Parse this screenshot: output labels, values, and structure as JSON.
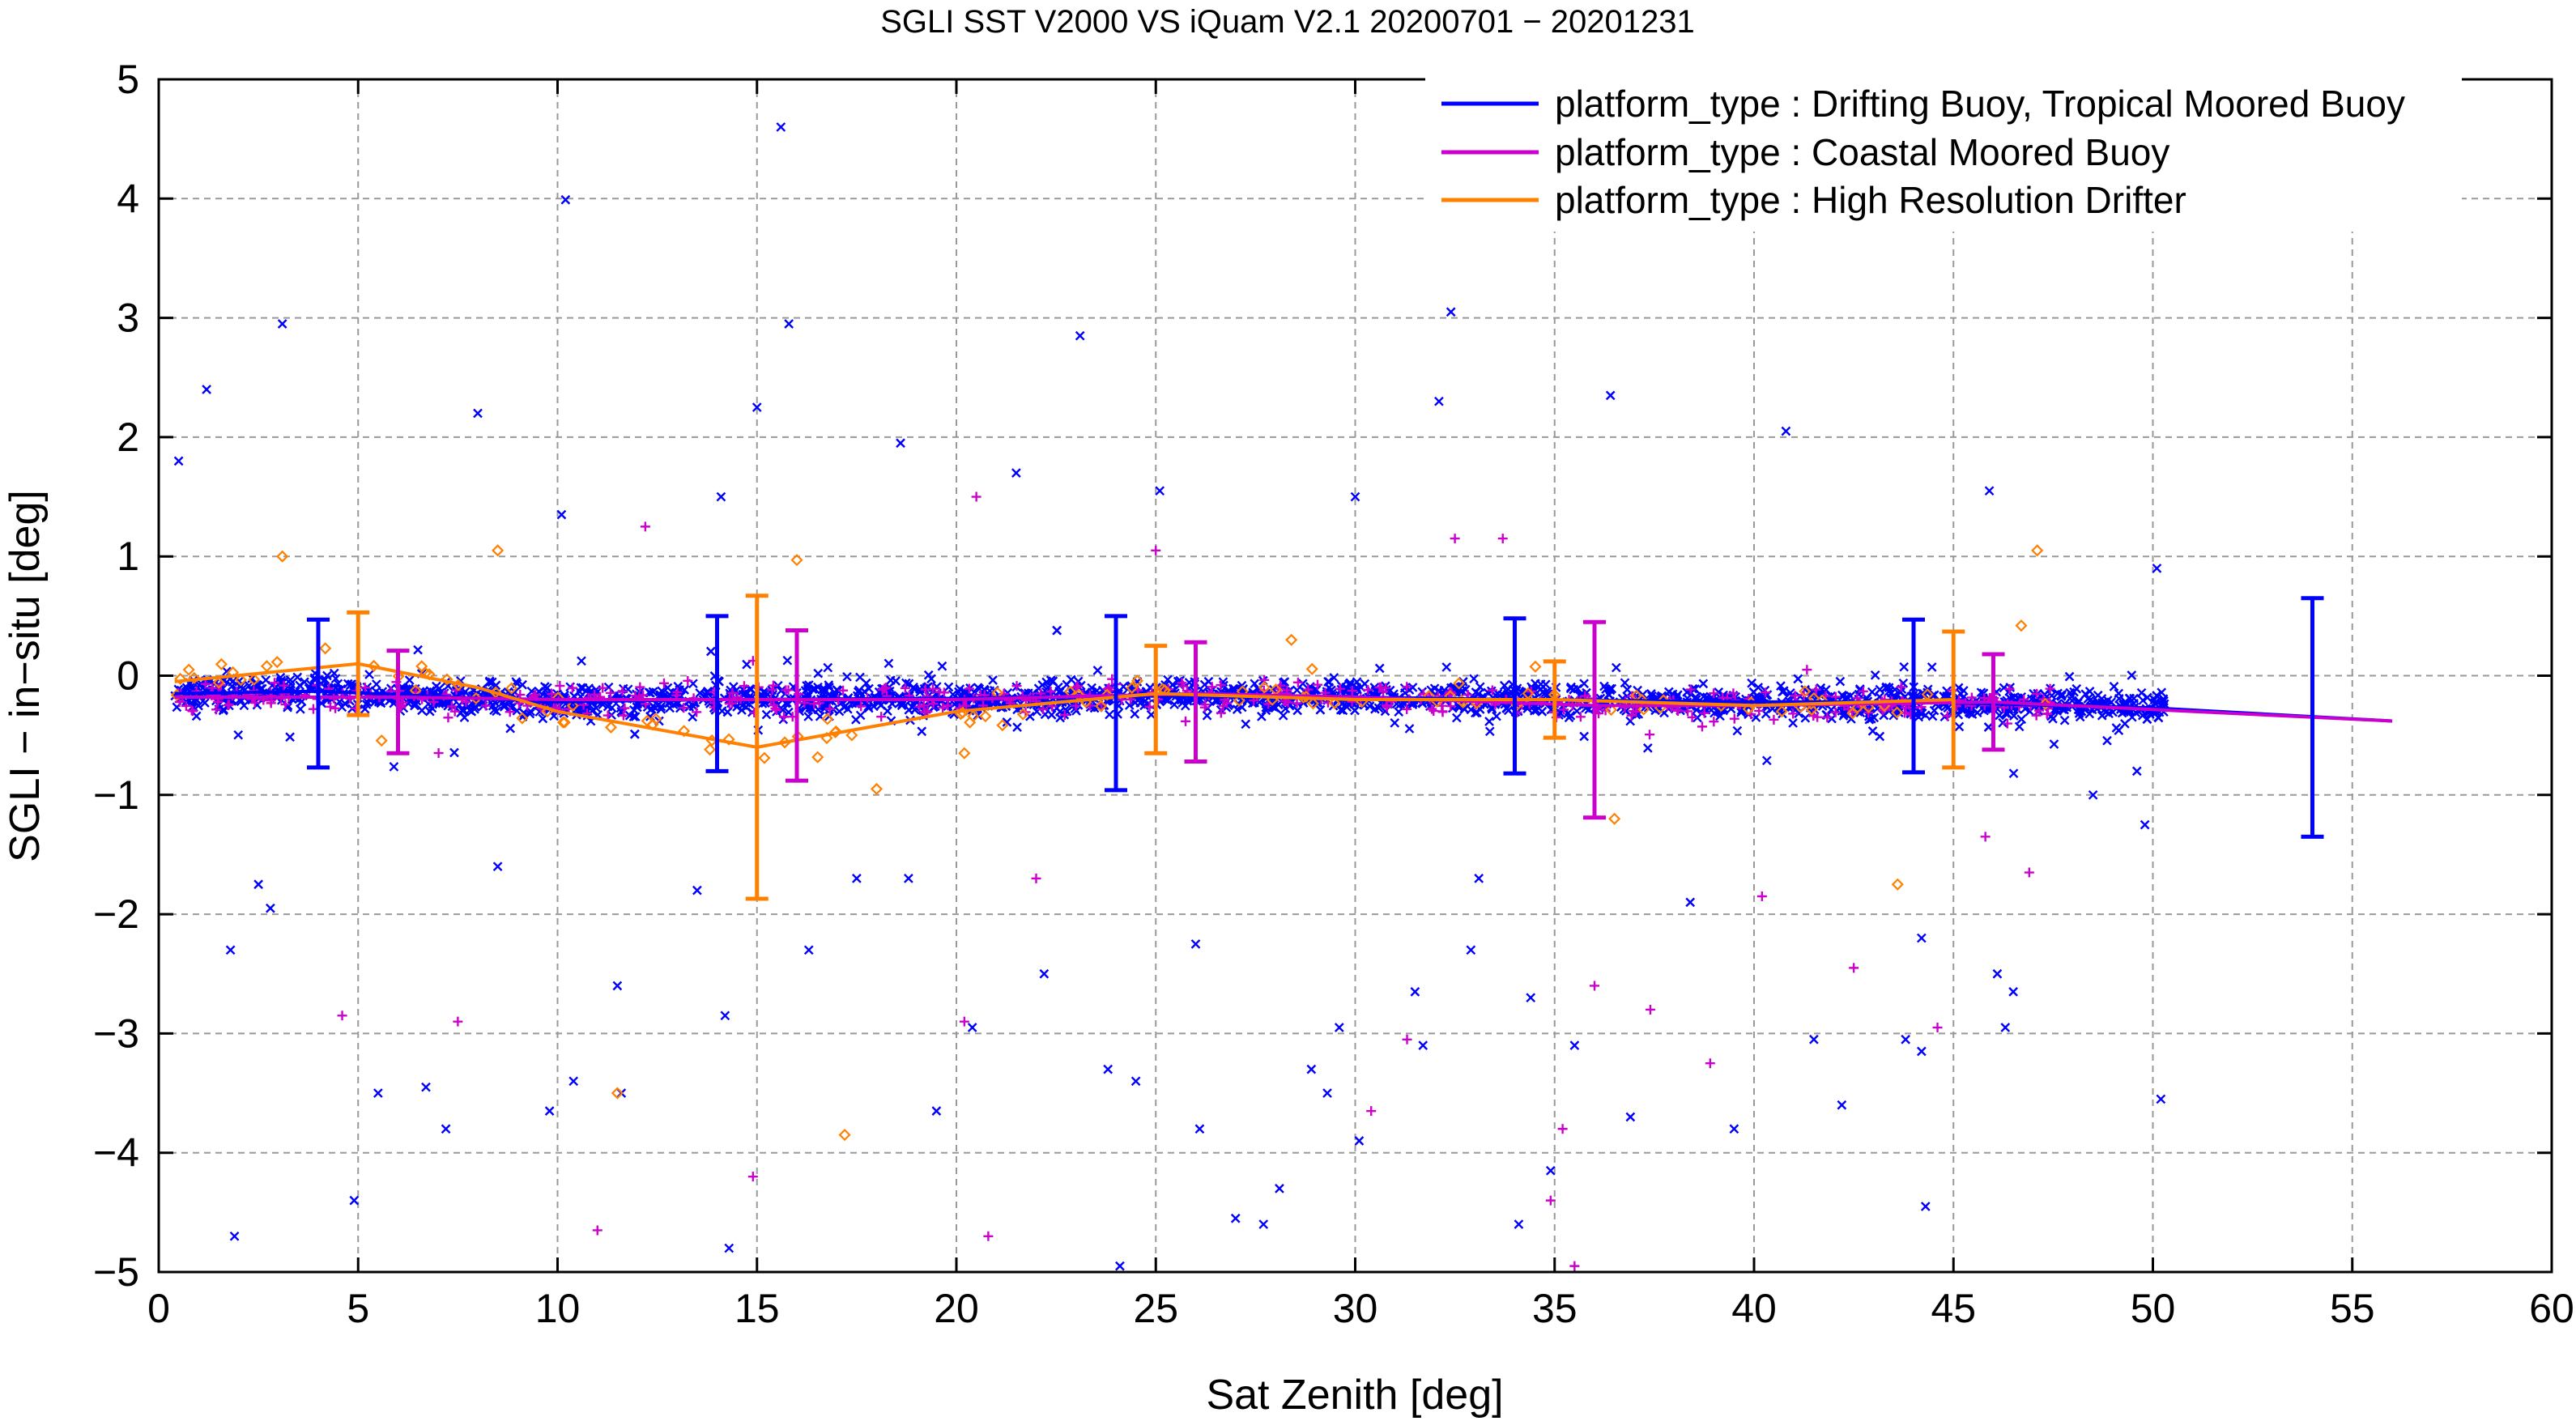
{
  "chart_data": {
    "type": "scatter",
    "title": "SGLI SST V2000 VS iQuam V2.1 20200701 − 20201231",
    "xlabel": "Sat Zenith [deg]",
    "ylabel": "SGLI − in−situ [deg]",
    "xlim": [
      0,
      60
    ],
    "ylim": [
      -5,
      5
    ],
    "xticks": [
      "0",
      "5",
      "10",
      "15",
      "20",
      "25",
      "30",
      "35",
      "40",
      "45",
      "50",
      "55",
      "60"
    ],
    "yticks": [
      "−5",
      "−4",
      "−3",
      "−2",
      "−1",
      "0",
      "1",
      "2",
      "3",
      "4",
      "5"
    ],
    "grid": true,
    "legend_position": "top-right",
    "series": [
      {
        "name": "platform_type : Drifting Buoy, Tropical Moored Buoy",
        "color": "#0000ff",
        "marker": "x",
        "mean_line": [
          [
            0.4,
            -0.15
          ],
          [
            4,
            -0.13
          ],
          [
            10,
            -0.22
          ],
          [
            14,
            -0.2
          ],
          [
            20,
            -0.19
          ],
          [
            24,
            -0.17
          ],
          [
            30,
            -0.18
          ],
          [
            34,
            -0.2
          ],
          [
            40,
            -0.22
          ],
          [
            44,
            -0.22
          ],
          [
            50,
            -0.27
          ],
          [
            56,
            -0.38
          ]
        ],
        "error_bars": [
          [
            4,
            -0.15,
            0.62
          ],
          [
            14,
            -0.15,
            0.65
          ],
          [
            24,
            -0.23,
            0.73
          ],
          [
            34,
            -0.17,
            0.65
          ],
          [
            44,
            -0.17,
            0.64
          ],
          [
            54,
            -0.35,
            1.0
          ]
        ],
        "outliers": [
          [
            0.5,
            1.8
          ],
          [
            1.2,
            2.4
          ],
          [
            3.1,
            2.95
          ],
          [
            1.8,
            -2.3
          ],
          [
            1.9,
            -4.7
          ],
          [
            2.5,
            -1.75
          ],
          [
            2.8,
            -1.95
          ],
          [
            4.9,
            -4.4
          ],
          [
            5.5,
            -3.5
          ],
          [
            6.7,
            -3.45
          ],
          [
            7.2,
            -3.8
          ],
          [
            8,
            2.2
          ],
          [
            8.5,
            -1.6
          ],
          [
            10.1,
            1.35
          ],
          [
            10.2,
            3.99
          ],
          [
            10.4,
            -3.4
          ],
          [
            9.8,
            -3.65
          ],
          [
            11.5,
            -2.6
          ],
          [
            11.6,
            -3.5
          ],
          [
            13.5,
            -1.8
          ],
          [
            14.1,
            1.5
          ],
          [
            14.2,
            -2.85
          ],
          [
            14.3,
            -4.8
          ],
          [
            15,
            2.25
          ],
          [
            15.6,
            4.6
          ],
          [
            15.8,
            2.95
          ],
          [
            16.3,
            -2.3
          ],
          [
            17.5,
            -1.7
          ],
          [
            18.6,
            1.95
          ],
          [
            18.8,
            -1.7
          ],
          [
            19.5,
            -3.65
          ],
          [
            20.4,
            -2.95
          ],
          [
            21.5,
            1.7
          ],
          [
            22.2,
            -2.5
          ],
          [
            23.1,
            2.85
          ],
          [
            23.8,
            -3.3
          ],
          [
            24.1,
            -4.95
          ],
          [
            24.5,
            -3.4
          ],
          [
            25.1,
            1.55
          ],
          [
            26,
            -2.25
          ],
          [
            26.1,
            -3.8
          ],
          [
            27,
            -4.55
          ],
          [
            27.7,
            -4.6
          ],
          [
            28.1,
            -4.3
          ],
          [
            28.9,
            -3.3
          ],
          [
            29.3,
            -3.5
          ],
          [
            29.6,
            -2.95
          ],
          [
            30,
            1.5
          ],
          [
            30.1,
            -3.9
          ],
          [
            31.5,
            -2.65
          ],
          [
            31.7,
            -3.1
          ],
          [
            32.1,
            2.3
          ],
          [
            32.4,
            3.05
          ],
          [
            32.9,
            -2.3
          ],
          [
            33.1,
            -1.7
          ],
          [
            34.1,
            -4.6
          ],
          [
            34.4,
            -2.7
          ],
          [
            34.9,
            -4.15
          ],
          [
            35.5,
            -3.1
          ],
          [
            36.4,
            2.35
          ],
          [
            36.9,
            -3.7
          ],
          [
            38.4,
            -1.9
          ],
          [
            39.5,
            -3.8
          ],
          [
            40.8,
            2.05
          ],
          [
            41.5,
            -3.05
          ],
          [
            42.2,
            -3.6
          ],
          [
            43.8,
            -3.05
          ],
          [
            44.2,
            -2.2
          ],
          [
            44.2,
            -3.15
          ],
          [
            44.3,
            -4.45
          ],
          [
            45.9,
            1.55
          ],
          [
            46.1,
            -2.5
          ],
          [
            46.3,
            -2.95
          ],
          [
            46.5,
            -2.65
          ],
          [
            48.5,
            -1.0
          ],
          [
            49.6,
            -0.8
          ],
          [
            49.8,
            -1.25
          ],
          [
            50.2,
            -3.55
          ],
          [
            50.1,
            0.9
          ]
        ]
      },
      {
        "name": "platform_type : Coastal Moored Buoy",
        "color": "#cc00cc",
        "marker": "+",
        "mean_line": [
          [
            0.4,
            -0.18
          ],
          [
            6,
            -0.18
          ],
          [
            10,
            -0.2
          ],
          [
            16,
            -0.2
          ],
          [
            20,
            -0.2
          ],
          [
            26,
            -0.15
          ],
          [
            30,
            -0.18
          ],
          [
            36,
            -0.25
          ],
          [
            40,
            -0.25
          ],
          [
            46,
            -0.22
          ],
          [
            56,
            -0.38
          ]
        ],
        "error_bars": [
          [
            6,
            -0.22,
            0.43
          ],
          [
            16,
            -0.25,
            0.63
          ],
          [
            26,
            -0.22,
            0.5
          ],
          [
            36,
            -0.37,
            0.82
          ],
          [
            46,
            -0.22,
            0.4
          ]
        ],
        "outliers": [
          [
            4.6,
            -2.85
          ],
          [
            7.5,
            -2.9
          ],
          [
            11,
            -4.65
          ],
          [
            12.2,
            1.25
          ],
          [
            14.9,
            -4.2
          ],
          [
            20.5,
            1.5
          ],
          [
            20.2,
            -2.9
          ],
          [
            20.8,
            -4.7
          ],
          [
            22,
            -1.7
          ],
          [
            25,
            1.05
          ],
          [
            30.4,
            -3.65
          ],
          [
            31.3,
            -3.05
          ],
          [
            32.5,
            1.15
          ],
          [
            33.7,
            1.15
          ],
          [
            34.9,
            -4.4
          ],
          [
            35.2,
            -3.8
          ],
          [
            35.5,
            -4.95
          ],
          [
            36,
            -2.6
          ],
          [
            37.4,
            -2.8
          ],
          [
            38.9,
            -3.25
          ],
          [
            40.2,
            -1.85
          ],
          [
            42.5,
            -2.45
          ],
          [
            44.6,
            -2.95
          ],
          [
            45.8,
            -1.35
          ],
          [
            46.9,
            -1.65
          ]
        ]
      },
      {
        "name": "platform_type : High Resolution Drifter",
        "color": "#ff8000",
        "marker": "diamond",
        "mean_line": [
          [
            0.4,
            -0.05
          ],
          [
            5,
            0.1
          ],
          [
            8,
            -0.1
          ],
          [
            10,
            -0.3
          ],
          [
            15,
            -0.6
          ],
          [
            20,
            -0.3
          ],
          [
            25,
            -0.15
          ],
          [
            30,
            -0.2
          ],
          [
            35,
            -0.2
          ],
          [
            40,
            -0.25
          ],
          [
            45,
            -0.2
          ]
        ],
        "error_bars": [
          [
            5,
            0.1,
            0.43
          ],
          [
            15,
            -0.6,
            1.27
          ],
          [
            25,
            -0.2,
            0.45
          ],
          [
            35,
            -0.2,
            0.32
          ],
          [
            45,
            -0.2,
            0.57
          ]
        ],
        "outliers": [
          [
            3.1,
            1.0
          ],
          [
            8.5,
            1.05
          ],
          [
            16,
            0.97
          ],
          [
            18,
            -0.95
          ],
          [
            11.5,
            -3.5
          ],
          [
            17.2,
            -3.85
          ],
          [
            20.2,
            -0.65
          ],
          [
            28.4,
            0.3
          ],
          [
            43.6,
            -1.75
          ],
          [
            47.1,
            1.05
          ],
          [
            36.5,
            -1.2
          ],
          [
            46.7,
            0.42
          ]
        ]
      }
    ]
  }
}
